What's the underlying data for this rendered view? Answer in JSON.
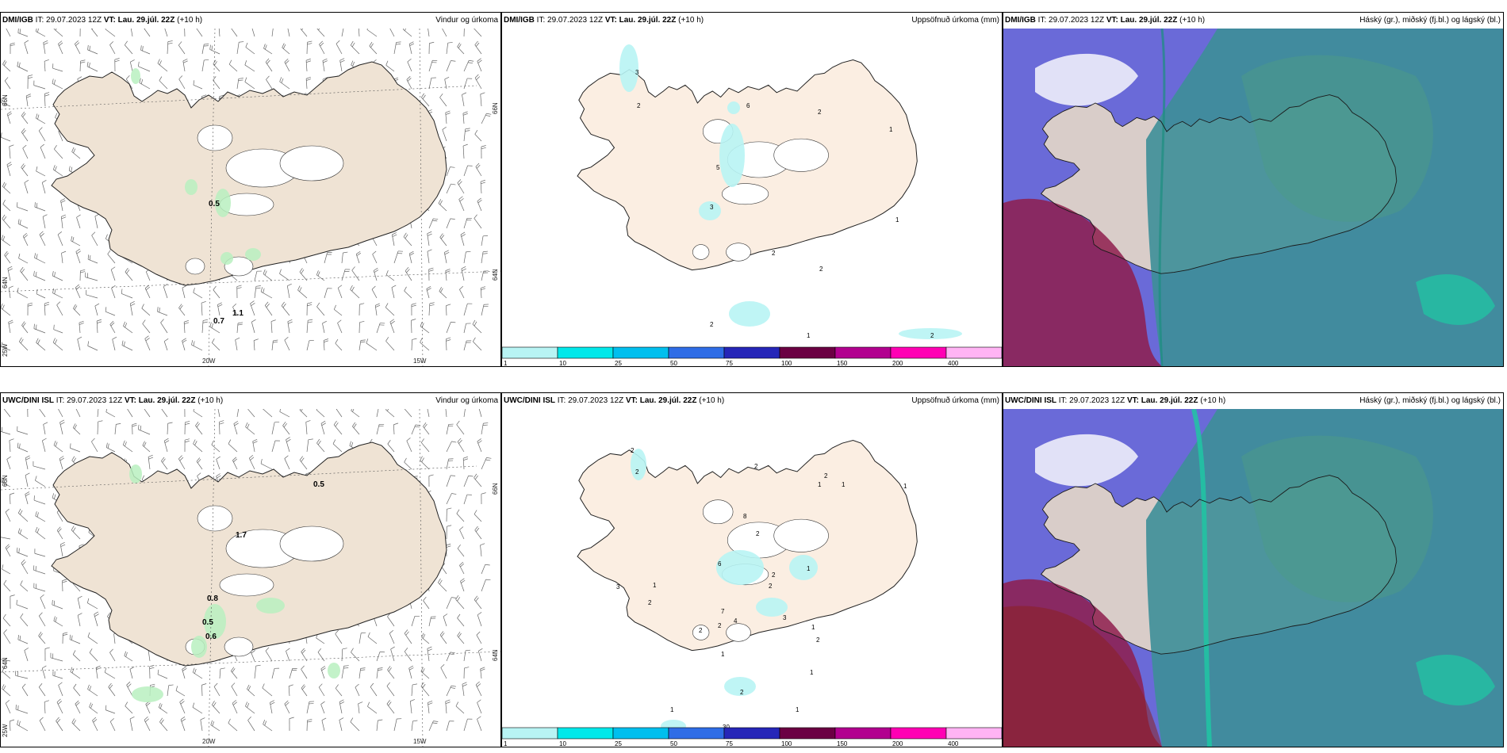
{
  "rows": [
    {
      "model": "DMI/IGB",
      "it_label": "IT:",
      "it_value": "29.07.2023 12Z",
      "vt_label": "VT:",
      "vt_value": "Lau. 29.júl. 22Z",
      "lead": "(+10 h)",
      "wind_value_labels": [
        "0.5",
        "0.7",
        "1.1"
      ],
      "precip_value_labels": [
        "3",
        "2",
        "6",
        "2",
        "1",
        "5",
        "3",
        "1",
        "2",
        "2",
        "2",
        "1",
        "2"
      ]
    },
    {
      "model": "UWC/DINI ISL",
      "it_label": "IT:",
      "it_value": "29.07.2023 12Z",
      "vt_label": "VT:",
      "vt_value": "Lau. 29.júl. 22Z",
      "lead": "(+10 h)",
      "wind_value_labels": [
        "0.5",
        "1.7",
        "0.8",
        "0.5",
        "0.6"
      ],
      "precip_value_labels": [
        "2",
        "2",
        "2",
        "2",
        "1",
        "1",
        "1",
        "8",
        "2",
        "6",
        "1",
        "2",
        "1",
        "2",
        "3",
        "2",
        "7",
        "4",
        "2",
        "2",
        "3",
        "1",
        "2",
        "1",
        "1",
        "1",
        "2",
        "30",
        "1"
      ]
    }
  ],
  "panels": {
    "wind_title": "Vindur og úrkoma",
    "precip_title": "Uppsöfnuð úrkoma (mm)",
    "cloud_title": "Háský (gr.), miðský (fj.bl.) og lágský (bl.)"
  },
  "grid_labels": {
    "lat_66": "66N",
    "lat_64": "64N",
    "lon_25": "25W",
    "lon_20": "20W",
    "lon_15": "15W"
  },
  "colorbar": {
    "ticks": [
      "1",
      "10",
      "25",
      "50",
      "75",
      "100",
      "150",
      "200",
      "400"
    ],
    "colors": [
      "#b8f4f4",
      "#00e8ea",
      "#00bfee",
      "#2f6de6",
      "#2626b8",
      "#6b0043",
      "#b2008f",
      "#ff00b4",
      "#ffb4f4"
    ]
  },
  "colors": {
    "land": "#efe3d4",
    "land_precip": "#fbeee2",
    "rain_light": "#b9f0bf",
    "precip_light": "#b8f4f4",
    "glacier": "#ffffff",
    "cloud_high": "#6a6ad8",
    "cloud_mid": "#3d8f98",
    "cloud_low": "#8e1d4d",
    "cloud_teal": "#20c6a3"
  }
}
